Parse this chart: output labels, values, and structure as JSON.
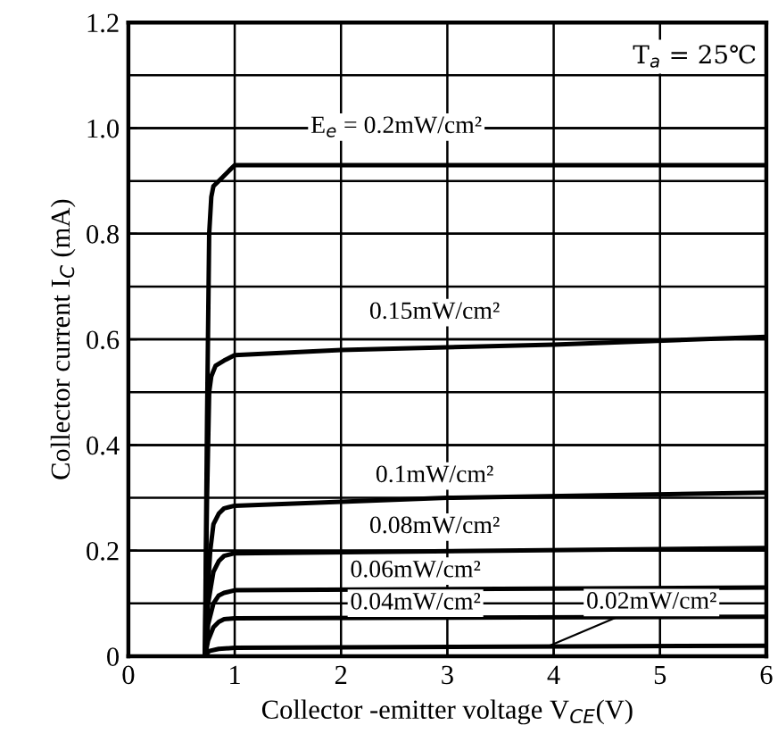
{
  "chart_data": {
    "type": "line",
    "xlabel": "Collector -emitter voltage V$_{CE}$(V)",
    "ylabel": "Collector current I$_{C}$ (mA)",
    "xlim": [
      0,
      6
    ],
    "xticks": [
      0,
      1,
      2,
      3,
      4,
      5,
      6
    ],
    "ylim": [
      0,
      1.2
    ],
    "yticks": [
      {
        "value": 0,
        "label": "0"
      },
      0.2,
      0.4,
      0.6,
      0.8,
      {
        "value": 1.0,
        "label": "1.0"
      },
      1.2
    ],
    "grid": true,
    "legend": false,
    "marker": "none",
    "line_style": "solid",
    "series": [
      {
        "name": "E$_{e}$ = 0.2mW/cm²",
        "color": "#000000",
        "x": [
          0.72,
          0.74,
          0.76,
          0.78,
          0.8,
          0.85,
          1,
          6
        ],
        "values": [
          0,
          0.45,
          0.8,
          0.87,
          0.89,
          0.9,
          0.93,
          0.93
        ]
      },
      {
        "name": "0.15mW/cm²",
        "color": "#000000",
        "x": [
          0.72,
          0.74,
          0.76,
          0.78,
          0.82,
          0.9,
          1,
          2,
          4,
          6
        ],
        "values": [
          0,
          0.3,
          0.5,
          0.53,
          0.55,
          0.56,
          0.57,
          0.58,
          0.59,
          0.605
        ]
      },
      {
        "name": "0.1mW/cm²",
        "color": "#000000",
        "x": [
          0.72,
          0.74,
          0.77,
          0.8,
          0.85,
          0.9,
          1,
          3,
          6
        ],
        "values": [
          0,
          0.1,
          0.2,
          0.25,
          0.27,
          0.28,
          0.285,
          0.3,
          0.31
        ]
      },
      {
        "name": "0.08mW/cm²",
        "color": "#000000",
        "x": [
          0.72,
          0.75,
          0.8,
          0.85,
          0.9,
          1,
          6
        ],
        "values": [
          0,
          0.1,
          0.16,
          0.18,
          0.19,
          0.195,
          0.205
        ]
      },
      {
        "name": "0.06mW/cm²",
        "color": "#000000",
        "x": [
          0.72,
          0.75,
          0.8,
          0.85,
          0.9,
          1,
          6
        ],
        "values": [
          0,
          0.06,
          0.1,
          0.115,
          0.12,
          0.125,
          0.13
        ]
      },
      {
        "name": "0.04mW/cm²",
        "color": "#000000",
        "x": [
          0.72,
          0.75,
          0.8,
          0.85,
          0.9,
          1,
          6
        ],
        "values": [
          0,
          0.03,
          0.055,
          0.065,
          0.07,
          0.072,
          0.075
        ]
      },
      {
        "name": "0.02mW/cm²",
        "color": "#000000",
        "x": [
          0.72,
          0.76,
          0.85,
          1,
          6
        ],
        "values": [
          0,
          0.01,
          0.014,
          0.016,
          0.02
        ]
      }
    ],
    "annotations": [
      "T$_{a}$ = 25℃"
    ]
  }
}
